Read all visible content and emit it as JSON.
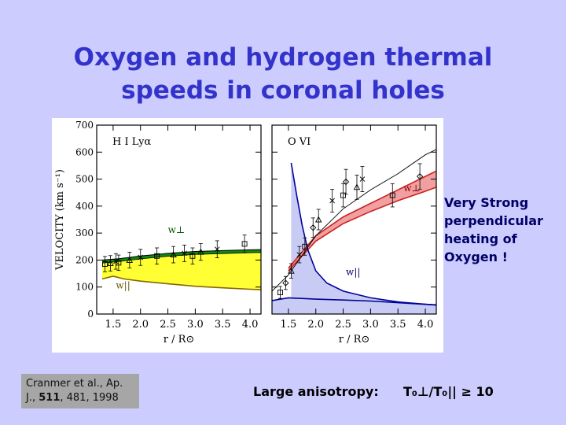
{
  "slide": {
    "title_line1": "Oxygen and hydrogen thermal",
    "title_line2": "speeds in coronal holes",
    "side_note": [
      "Very Strong",
      "perpendicular",
      "heating of",
      "Oxygen !"
    ],
    "citation_prefix": "Cranmer et al., Ap.",
    "citation_mid": "J., ",
    "citation_volume": "511",
    "citation_suffix": ", 481, 1998",
    "anisotropy_label": "Large anisotropy:",
    "ratio_label": "T₀⊥/T₀|| ≥ 10"
  },
  "colors": {
    "background": "#ccccff",
    "title": "#3333cc",
    "yellow_band": "#ffff33",
    "red_band": "#cc2222",
    "green_band": "#118811",
    "blue_curve": "#000099",
    "blue_fill": "#c8ccf4"
  },
  "chart_data": [
    {
      "type": "line",
      "panel_label": "H I Lyα",
      "ylabel": "VELOCITY (km s⁻¹)",
      "xlabel": "r / R⊙",
      "xlim": [
        1.2,
        4.2
      ],
      "ylim": [
        0,
        700
      ],
      "yticks": [
        "0",
        "100",
        "200",
        "300",
        "400",
        "500",
        "600",
        "700"
      ],
      "xticks": [
        "1.5",
        "2.0",
        "2.5",
        "3.0",
        "3.5",
        "4.0"
      ],
      "annotations": [
        "w⊥",
        "w||"
      ],
      "series": [
        {
          "values_x": [
            1.3,
            1.6,
            2.0,
            2.5,
            3.0,
            3.5,
            4.0,
            4.2
          ],
          "values_y": [
            190,
            195,
            205,
            215,
            222,
            225,
            228,
            229
          ]
        },
        {
          "values_x": [
            1.3,
            1.5,
            1.7,
            2.0,
            2.5,
            3.0,
            3.5,
            4.0,
            4.2
          ],
          "values_y": [
            130,
            140,
            130,
            122,
            112,
            103,
            97,
            92,
            90
          ]
        },
        {
          "values_x": [
            1.35,
            1.45,
            1.55,
            1.6,
            1.8,
            2.0,
            2.3,
            2.6,
            2.8,
            2.95,
            3.1,
            3.4,
            3.9
          ],
          "values_y": [
            185,
            188,
            195,
            190,
            200,
            210,
            215,
            220,
            225,
            215,
            230,
            240,
            260
          ]
        }
      ]
    },
    {
      "type": "line",
      "panel_label": "O VI",
      "xlabel": "r / R⊙",
      "xlim": [
        1.2,
        4.2
      ],
      "ylim": [
        0,
        700
      ],
      "xticks": [
        "1.5",
        "2.0",
        "2.5",
        "3.0",
        "3.5",
        "4.0"
      ],
      "annotations": [
        "w⊥",
        "w||"
      ],
      "series": [
        {
          "values_x": [
            1.5,
            2.0,
            2.5,
            3.0,
            3.5,
            4.0,
            4.2
          ],
          "values_y": [
            170,
            290,
            360,
            410,
            460,
            510,
            530
          ]
        },
        {
          "values_x": [
            1.5,
            2.0,
            2.5,
            3.0,
            3.5,
            4.0,
            4.2
          ],
          "values_y": [
            160,
            270,
            335,
            380,
            420,
            455,
            470
          ]
        },
        {
          "values_x": [
            1.2,
            1.5,
            2.0,
            2.5,
            3.0,
            3.5,
            4.0,
            4.2
          ],
          "values_y": [
            85,
            145,
            290,
            390,
            460,
            520,
            590,
            610
          ]
        },
        {
          "values_x": [
            1.55,
            1.65,
            1.75,
            1.85,
            2.0,
            2.2,
            2.5,
            2.8,
            3.0,
            3.5,
            4.2
          ],
          "values_y": [
            560,
            440,
            330,
            240,
            160,
            115,
            85,
            70,
            60,
            45,
            33
          ]
        },
        {
          "values_x": [
            1.2,
            1.5,
            2.0,
            2.5,
            3.0,
            3.5,
            4.0,
            4.2
          ],
          "values_y": [
            50,
            60,
            55,
            52,
            48,
            42,
            36,
            34
          ]
        },
        {
          "values_x": [
            1.35,
            1.45,
            1.55,
            1.7,
            1.8,
            1.95,
            2.05,
            2.3,
            2.5,
            2.55,
            2.75,
            2.85,
            3.4,
            3.9
          ],
          "values_y": [
            80,
            115,
            160,
            220,
            250,
            320,
            350,
            420,
            440,
            490,
            470,
            500,
            440,
            510
          ]
        }
      ]
    }
  ]
}
